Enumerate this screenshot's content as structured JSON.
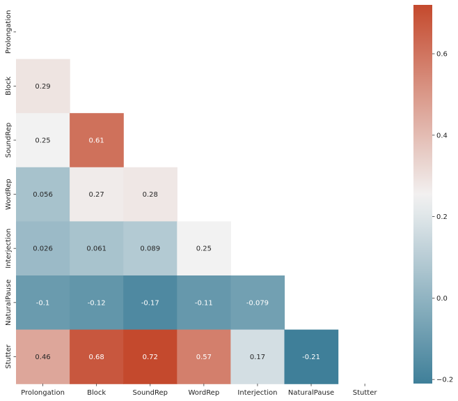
{
  "chart_data": {
    "type": "heatmap",
    "title": "",
    "xlabel": "",
    "ylabel": "",
    "mask": "upper-triangle-including-diagonal",
    "categories": [
      "Prolongation",
      "Block",
      "SoundRep",
      "WordRep",
      "Interjection",
      "NaturalPause",
      "Stutter"
    ],
    "values": [
      [
        null,
        null,
        null,
        null,
        null,
        null,
        null
      ],
      [
        0.29,
        null,
        null,
        null,
        null,
        null,
        null
      ],
      [
        0.25,
        0.61,
        null,
        null,
        null,
        null,
        null
      ],
      [
        0.056,
        0.27,
        0.28,
        null,
        null,
        null,
        null
      ],
      [
        0.026,
        0.061,
        0.089,
        0.25,
        null,
        null,
        null
      ],
      [
        -0.1,
        -0.12,
        -0.17,
        -0.11,
        -0.079,
        null,
        null
      ],
      [
        0.46,
        0.68,
        0.72,
        0.57,
        0.17,
        -0.21,
        null
      ]
    ],
    "value_labels": [
      [
        null,
        null,
        null,
        null,
        null,
        null,
        null
      ],
      [
        "0.29",
        null,
        null,
        null,
        null,
        null,
        null
      ],
      [
        "0.25",
        "0.61",
        null,
        null,
        null,
        null,
        null
      ],
      [
        "0.056",
        "0.27",
        "0.28",
        null,
        null,
        null,
        null
      ],
      [
        "0.026",
        "0.061",
        "0.089",
        "0.25",
        null,
        null,
        null
      ],
      [
        "-0.1",
        "-0.12",
        "-0.17",
        "-0.11",
        "-0.079",
        null,
        null
      ],
      [
        "0.46",
        "0.68",
        "0.72",
        "0.57",
        "0.17",
        "-0.21",
        null
      ]
    ],
    "colorbar": {
      "vmin": -0.21,
      "vmax": 0.72,
      "ticks": [
        -0.2,
        0.0,
        0.2,
        0.4,
        0.6
      ],
      "tick_labels": [
        "−0.2",
        "0.0",
        "0.2",
        "0.4",
        "0.6"
      ],
      "colormap": "diverging blue-white-red",
      "colors": [
        "#3f7f99",
        "#f2f2f2",
        "#c4492d"
      ]
    }
  }
}
